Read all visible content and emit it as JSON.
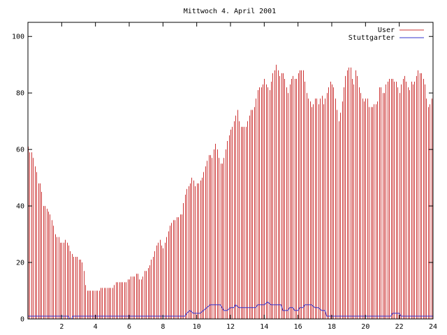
{
  "chart_data": {
    "type": "bar",
    "title": "Mittwoch 4. April 2001",
    "xlabel": "",
    "ylabel": "",
    "xlim": [
      0,
      24
    ],
    "ylim": [
      0,
      105
    ],
    "x_ticks": [
      2,
      4,
      6,
      8,
      10,
      12,
      14,
      16,
      18,
      20,
      22,
      24
    ],
    "y_ticks": [
      0,
      20,
      40,
      60,
      80,
      100
    ],
    "grid": false,
    "legend_position": "top-right",
    "series": [
      {
        "name": "User",
        "style": "impulses",
        "color": "#cc3333",
        "points": [
          [
            0.0,
            61
          ],
          [
            0.1,
            59
          ],
          [
            0.2,
            59
          ],
          [
            0.3,
            57
          ],
          [
            0.4,
            54
          ],
          [
            0.5,
            52
          ],
          [
            0.6,
            48
          ],
          [
            0.7,
            48
          ],
          [
            0.8,
            45
          ],
          [
            0.9,
            40
          ],
          [
            1.0,
            40
          ],
          [
            1.1,
            39
          ],
          [
            1.2,
            38
          ],
          [
            1.3,
            37
          ],
          [
            1.4,
            35
          ],
          [
            1.5,
            33
          ],
          [
            1.6,
            30
          ],
          [
            1.7,
            29
          ],
          [
            1.8,
            29
          ],
          [
            1.9,
            27
          ],
          [
            2.0,
            27
          ],
          [
            2.1,
            27
          ],
          [
            2.2,
            28
          ],
          [
            2.3,
            27
          ],
          [
            2.4,
            26
          ],
          [
            2.5,
            24
          ],
          [
            2.6,
            23
          ],
          [
            2.7,
            22
          ],
          [
            2.8,
            22
          ],
          [
            2.9,
            22
          ],
          [
            3.0,
            21
          ],
          [
            3.1,
            21
          ],
          [
            3.2,
            20
          ],
          [
            3.3,
            17
          ],
          [
            3.4,
            12
          ],
          [
            3.5,
            10
          ],
          [
            3.6,
            10
          ],
          [
            3.7,
            10
          ],
          [
            3.8,
            10
          ],
          [
            3.9,
            10
          ],
          [
            4.0,
            10
          ],
          [
            4.1,
            10
          ],
          [
            4.2,
            10
          ],
          [
            4.3,
            11
          ],
          [
            4.4,
            11
          ],
          [
            4.5,
            11
          ],
          [
            4.6,
            11
          ],
          [
            4.7,
            11
          ],
          [
            4.8,
            11
          ],
          [
            4.9,
            11
          ],
          [
            5.0,
            11
          ],
          [
            5.1,
            12
          ],
          [
            5.2,
            13
          ],
          [
            5.3,
            13
          ],
          [
            5.4,
            13
          ],
          [
            5.5,
            13
          ],
          [
            5.6,
            13
          ],
          [
            5.7,
            13
          ],
          [
            5.8,
            13
          ],
          [
            5.9,
            14
          ],
          [
            6.0,
            14
          ],
          [
            6.1,
            15
          ],
          [
            6.2,
            15
          ],
          [
            6.3,
            15
          ],
          [
            6.4,
            16
          ],
          [
            6.5,
            16
          ],
          [
            6.6,
            14
          ],
          [
            6.7,
            14
          ],
          [
            6.8,
            15
          ],
          [
            6.9,
            17
          ],
          [
            7.0,
            17
          ],
          [
            7.1,
            18
          ],
          [
            7.2,
            19
          ],
          [
            7.3,
            21
          ],
          [
            7.4,
            22
          ],
          [
            7.5,
            24
          ],
          [
            7.6,
            26
          ],
          [
            7.7,
            27
          ],
          [
            7.8,
            28
          ],
          [
            7.9,
            26
          ],
          [
            8.0,
            25
          ],
          [
            8.1,
            27
          ],
          [
            8.2,
            29
          ],
          [
            8.3,
            31
          ],
          [
            8.4,
            33
          ],
          [
            8.5,
            34
          ],
          [
            8.6,
            35
          ],
          [
            8.7,
            35
          ],
          [
            8.8,
            36
          ],
          [
            8.9,
            36
          ],
          [
            9.0,
            37
          ],
          [
            9.1,
            37
          ],
          [
            9.2,
            41
          ],
          [
            9.3,
            44
          ],
          [
            9.4,
            46
          ],
          [
            9.5,
            47
          ],
          [
            9.6,
            48
          ],
          [
            9.7,
            50
          ],
          [
            9.8,
            49
          ],
          [
            9.9,
            47
          ],
          [
            10.0,
            48
          ],
          [
            10.1,
            48
          ],
          [
            10.2,
            49
          ],
          [
            10.3,
            50
          ],
          [
            10.4,
            52
          ],
          [
            10.5,
            54
          ],
          [
            10.6,
            56
          ],
          [
            10.7,
            58
          ],
          [
            10.8,
            58
          ],
          [
            10.9,
            57
          ],
          [
            11.0,
            60
          ],
          [
            11.1,
            62
          ],
          [
            11.2,
            60
          ],
          [
            11.3,
            57
          ],
          [
            11.4,
            55
          ],
          [
            11.5,
            55
          ],
          [
            11.6,
            57
          ],
          [
            11.7,
            60
          ],
          [
            11.8,
            63
          ],
          [
            11.9,
            65
          ],
          [
            12.0,
            67
          ],
          [
            12.1,
            68
          ],
          [
            12.2,
            70
          ],
          [
            12.3,
            72
          ],
          [
            12.4,
            74
          ],
          [
            12.5,
            70
          ],
          [
            12.6,
            68
          ],
          [
            12.7,
            68
          ],
          [
            12.8,
            68
          ],
          [
            12.9,
            68
          ],
          [
            13.0,
            70
          ],
          [
            13.1,
            72
          ],
          [
            13.2,
            74
          ],
          [
            13.3,
            74
          ],
          [
            13.4,
            75
          ],
          [
            13.5,
            78
          ],
          [
            13.6,
            81
          ],
          [
            13.7,
            82
          ],
          [
            13.8,
            82
          ],
          [
            13.9,
            83
          ],
          [
            14.0,
            85
          ],
          [
            14.1,
            83
          ],
          [
            14.2,
            82
          ],
          [
            14.3,
            81
          ],
          [
            14.4,
            84
          ],
          [
            14.5,
            87
          ],
          [
            14.6,
            88
          ],
          [
            14.7,
            90
          ],
          [
            14.8,
            88
          ],
          [
            14.9,
            86
          ],
          [
            15.0,
            87
          ],
          [
            15.1,
            87
          ],
          [
            15.2,
            85
          ],
          [
            15.3,
            82
          ],
          [
            15.4,
            80
          ],
          [
            15.5,
            83
          ],
          [
            15.6,
            85
          ],
          [
            15.7,
            86
          ],
          [
            15.8,
            85
          ],
          [
            15.9,
            85
          ],
          [
            16.0,
            87
          ],
          [
            16.1,
            88
          ],
          [
            16.2,
            88
          ],
          [
            16.3,
            88
          ],
          [
            16.4,
            84
          ],
          [
            16.5,
            80
          ],
          [
            16.6,
            78
          ],
          [
            16.7,
            77
          ],
          [
            16.8,
            75
          ],
          [
            16.9,
            76
          ],
          [
            17.0,
            78
          ],
          [
            17.1,
            78
          ],
          [
            17.2,
            76
          ],
          [
            17.3,
            78
          ],
          [
            17.4,
            79
          ],
          [
            17.5,
            76
          ],
          [
            17.6,
            78
          ],
          [
            17.7,
            80
          ],
          [
            17.8,
            82
          ],
          [
            17.9,
            84
          ],
          [
            18.0,
            83
          ],
          [
            18.1,
            82
          ],
          [
            18.2,
            78
          ],
          [
            18.3,
            74
          ],
          [
            18.4,
            70
          ],
          [
            18.5,
            73
          ],
          [
            18.6,
            77
          ],
          [
            18.7,
            82
          ],
          [
            18.8,
            86
          ],
          [
            18.9,
            88
          ],
          [
            19.0,
            89
          ],
          [
            19.1,
            89
          ],
          [
            19.2,
            85
          ],
          [
            19.3,
            83
          ],
          [
            19.4,
            88
          ],
          [
            19.5,
            86
          ],
          [
            19.6,
            82
          ],
          [
            19.7,
            80
          ],
          [
            19.8,
            78
          ],
          [
            19.9,
            77
          ],
          [
            20.0,
            78
          ],
          [
            20.1,
            78
          ],
          [
            20.2,
            75
          ],
          [
            20.3,
            75
          ],
          [
            20.4,
            75
          ],
          [
            20.5,
            76
          ],
          [
            20.6,
            76
          ],
          [
            20.7,
            77
          ],
          [
            20.8,
            82
          ],
          [
            20.9,
            82
          ],
          [
            21.0,
            80
          ],
          [
            21.1,
            80
          ],
          [
            21.2,
            83
          ],
          [
            21.3,
            84
          ],
          [
            21.4,
            85
          ],
          [
            21.5,
            85
          ],
          [
            21.6,
            85
          ],
          [
            21.7,
            84
          ],
          [
            21.8,
            84
          ],
          [
            21.9,
            82
          ],
          [
            22.0,
            80
          ],
          [
            22.1,
            83
          ],
          [
            22.2,
            85
          ],
          [
            22.3,
            86
          ],
          [
            22.4,
            84
          ],
          [
            22.5,
            82
          ],
          [
            22.6,
            81
          ],
          [
            22.7,
            84
          ],
          [
            22.8,
            83
          ],
          [
            22.9,
            84
          ],
          [
            23.0,
            86
          ],
          [
            23.1,
            88
          ],
          [
            23.2,
            87
          ],
          [
            23.3,
            87
          ],
          [
            23.4,
            85
          ],
          [
            23.5,
            83
          ],
          [
            23.6,
            78
          ],
          [
            23.7,
            75
          ],
          [
            23.8,
            76
          ],
          [
            23.9,
            78
          ]
        ]
      },
      {
        "name": "Stuttgarter",
        "style": "line",
        "color": "#3333cc",
        "points": [
          [
            0.0,
            1
          ],
          [
            2.4,
            1
          ],
          [
            2.45,
            0
          ],
          [
            2.6,
            0
          ],
          [
            2.65,
            1
          ],
          [
            9.3,
            1
          ],
          [
            9.4,
            2
          ],
          [
            9.6,
            3
          ],
          [
            9.8,
            2
          ],
          [
            10.2,
            2
          ],
          [
            10.4,
            3
          ],
          [
            10.6,
            4
          ],
          [
            10.8,
            5
          ],
          [
            11.4,
            5
          ],
          [
            11.5,
            4
          ],
          [
            11.6,
            3
          ],
          [
            11.8,
            3
          ],
          [
            12.0,
            4
          ],
          [
            12.2,
            4
          ],
          [
            12.3,
            5
          ],
          [
            12.5,
            4
          ],
          [
            13.0,
            4
          ],
          [
            13.5,
            4
          ],
          [
            13.6,
            5
          ],
          [
            14.0,
            5
          ],
          [
            14.2,
            6
          ],
          [
            14.4,
            5
          ],
          [
            15.0,
            5
          ],
          [
            15.1,
            3
          ],
          [
            15.4,
            3
          ],
          [
            15.5,
            4
          ],
          [
            15.7,
            4
          ],
          [
            15.8,
            3
          ],
          [
            16.0,
            3
          ],
          [
            16.1,
            4
          ],
          [
            16.3,
            4
          ],
          [
            16.4,
            5
          ],
          [
            16.6,
            5
          ],
          [
            16.8,
            5
          ],
          [
            17.0,
            4
          ],
          [
            17.2,
            4
          ],
          [
            17.4,
            3
          ],
          [
            17.6,
            3
          ],
          [
            17.7,
            1
          ],
          [
            21.5,
            1
          ],
          [
            21.6,
            2
          ],
          [
            22.0,
            2
          ],
          [
            22.1,
            1
          ],
          [
            24.0,
            1
          ]
        ]
      }
    ]
  }
}
